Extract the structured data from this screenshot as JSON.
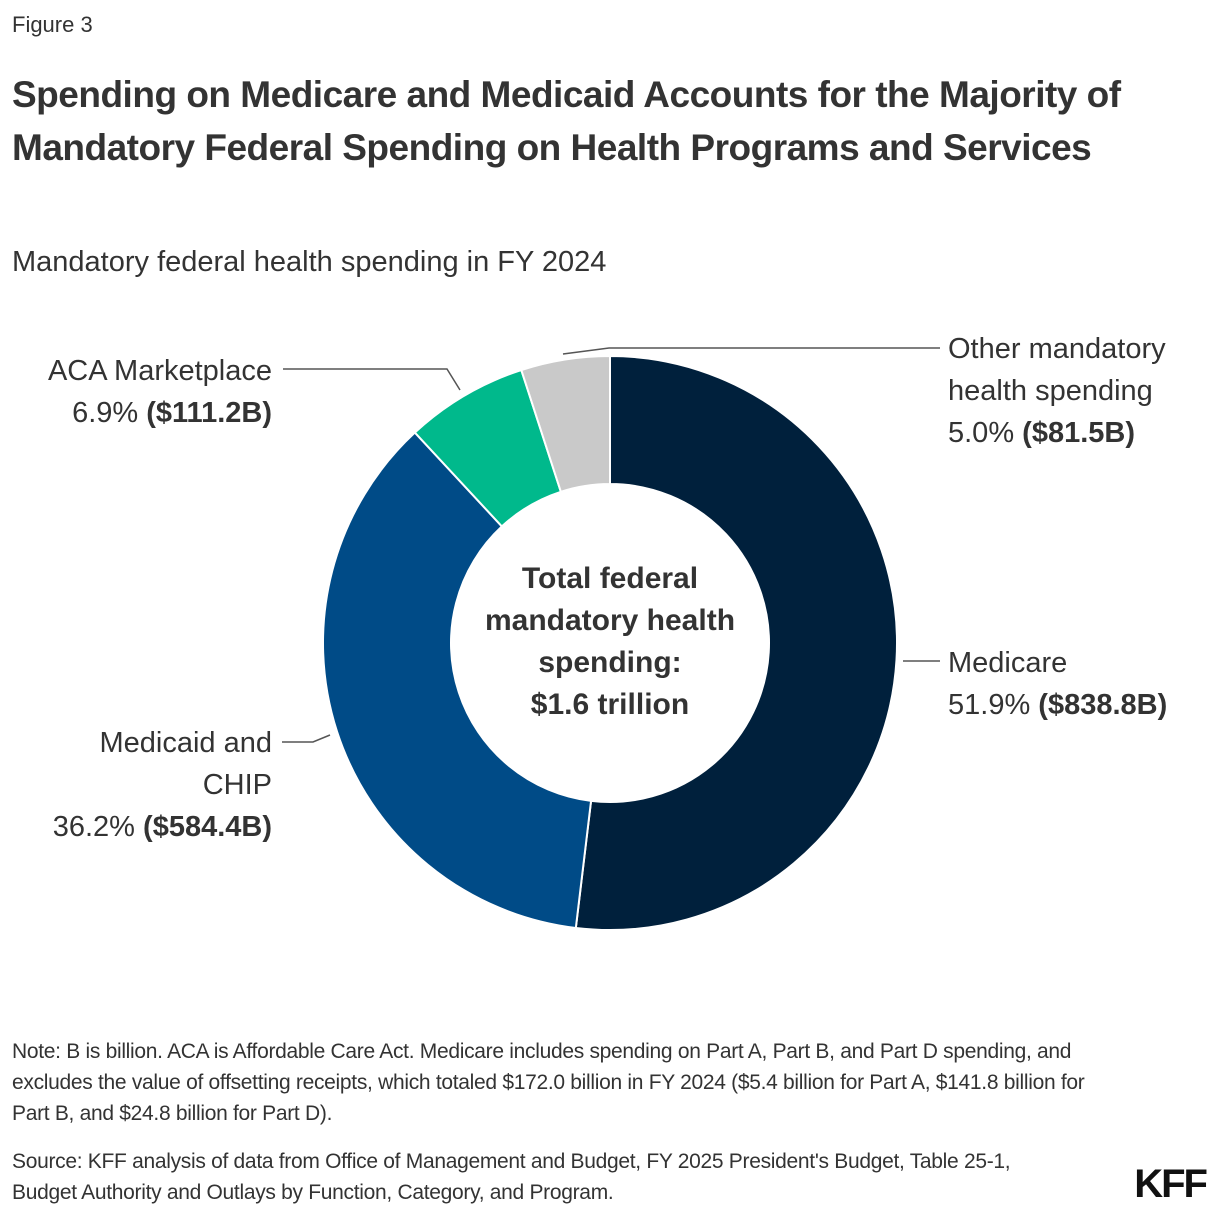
{
  "figure_label": "Figure 3",
  "title": "Spending on Medicare and Medicaid Accounts for the Majority of Mandatory Federal Spending on Health Programs and Services",
  "subtitle": "Mandatory federal health spending in FY 2024",
  "chart_data": {
    "type": "pie",
    "donut": true,
    "center_label": "Total federal mandatory health spending: $1.6 trillion",
    "slices": [
      {
        "name": "Medicare",
        "percent": 51.9,
        "value_label": "($838.8B)",
        "pct_label": "51.9%",
        "value_billion": 838.8,
        "color": "#00203c"
      },
      {
        "name": "Medicaid and CHIP",
        "percent": 36.2,
        "value_label": "($584.4B)",
        "pct_label": "36.2%",
        "value_billion": 584.4,
        "color": "#004b87"
      },
      {
        "name": "ACA Marketplace",
        "percent": 6.9,
        "value_label": "($111.2B)",
        "pct_label": "6.9%",
        "value_billion": 111.2,
        "color": "#00b98c"
      },
      {
        "name": "Other mandatory health spending",
        "percent": 5.0,
        "value_label": "($81.5B)",
        "pct_label": "5.0%",
        "value_billion": 81.5,
        "color": "#c9c9c9"
      }
    ]
  },
  "labels": {
    "medicare_name": "Medicare",
    "medicaid_line1": "Medicaid and",
    "medicaid_line2": "CHIP",
    "aca_name": "ACA Marketplace",
    "other_line1": "Other mandatory",
    "other_line2": "health spending"
  },
  "center": {
    "line1": "Total federal",
    "line2": "mandatory health",
    "line3": "spending:",
    "line4": "$1.6 trillion"
  },
  "note": "Note: B is billion. ACA is Affordable Care Act. Medicare includes spending on Part A, Part B, and Part D spending, and excludes the value of offsetting receipts, which totaled $172.0 billion in FY 2024 ($5.4 billion for Part A, $141.8 billion for Part B, and $24.8 billion for Part D).",
  "source": "Source: KFF analysis of data from Office of Management and Budget, FY 2025 President's Budget, Table 25-1, Budget Authority and Outlays by Function, Category, and Program.",
  "logo": "KFF"
}
